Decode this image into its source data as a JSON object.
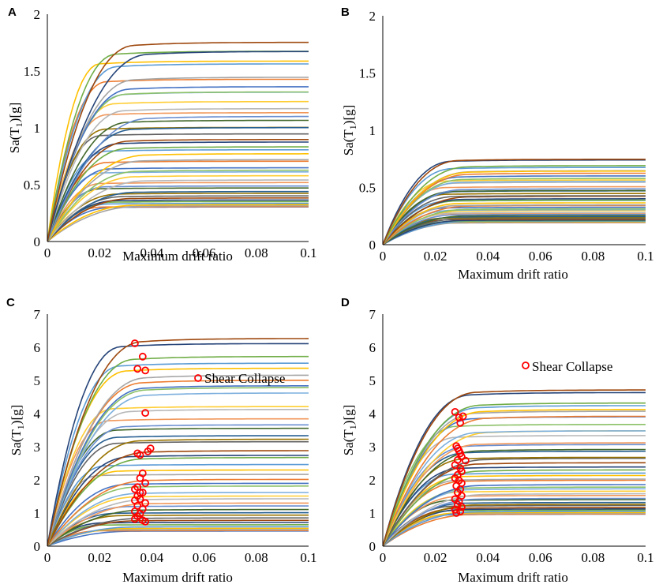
{
  "chart_data": [
    {
      "panel": "A",
      "type": "line",
      "xlabel": "Maximum drift ratio",
      "ylabel_main": "Sa(T",
      "ylabel_sub": "1",
      "ylabel_tail": ")[g]",
      "xlim": [
        0,
        0.1
      ],
      "ylim": [
        0,
        2
      ],
      "xticks": [
        0,
        0.02,
        0.04,
        0.06,
        0.08,
        0.1
      ],
      "xtick_labels": [
        "0",
        "0.02",
        "0.04",
        "0.06",
        "0.08",
        "0.1"
      ],
      "yticks": [
        0,
        0.5,
        1,
        1.5,
        2
      ],
      "ytick_labels": [
        "0",
        "0.5",
        "1",
        "1.5",
        "2"
      ],
      "curve_count": 44,
      "plateau_range": [
        0.3,
        1.78
      ],
      "yield_drift_range": [
        0.02,
        0.04
      ],
      "seed": 11,
      "legend": null
    },
    {
      "panel": "B",
      "type": "line",
      "xlabel": "Maximum drift ratio",
      "ylabel_main": "Sa(T",
      "ylabel_sub": "1",
      "ylabel_tail": ")[g]",
      "xlim": [
        0,
        0.1
      ],
      "ylim": [
        0,
        2
      ],
      "xticks": [
        0,
        0.02,
        0.04,
        0.06,
        0.08,
        0.1
      ],
      "xtick_labels": [
        "0",
        "0.02",
        "0.04",
        "0.06",
        "0.08",
        "0.1"
      ],
      "yticks": [
        0,
        0.5,
        1,
        1.5,
        2
      ],
      "ytick_labels": [
        "0",
        "0.5",
        "1",
        "1.5",
        "2"
      ],
      "curve_count": 44,
      "plateau_range": [
        0.19,
        0.75
      ],
      "yield_drift_range": [
        0.024,
        0.034
      ],
      "seed": 23,
      "legend": null
    },
    {
      "panel": "C",
      "type": "line",
      "xlabel": "Maximum drift ratio",
      "ylabel_main": "Sa(T",
      "ylabel_sub": "1",
      "ylabel_tail": ")[g]",
      "xlim": [
        0,
        0.1
      ],
      "ylim": [
        0,
        7
      ],
      "xticks": [
        0,
        0.02,
        0.04,
        0.06,
        0.08,
        0.1
      ],
      "xtick_labels": [
        "0",
        "0.02",
        "0.04",
        "0.06",
        "0.08",
        "0.1"
      ],
      "yticks": [
        0,
        1,
        2,
        3,
        4,
        5,
        6,
        7
      ],
      "ytick_labels": [
        "0",
        "1",
        "2",
        "3",
        "4",
        "5",
        "6",
        "7"
      ],
      "curve_count": 44,
      "plateau_range": [
        0.45,
        6.5
      ],
      "yield_drift_range": [
        0.02,
        0.04
      ],
      "seed": 37,
      "legend": "Shear Collapse",
      "shear_collapse_points": [
        {
          "x": 0.0335,
          "y": 6.12
        },
        {
          "x": 0.0365,
          "y": 5.72
        },
        {
          "x": 0.0345,
          "y": 5.35
        },
        {
          "x": 0.0375,
          "y": 5.3
        },
        {
          "x": 0.0375,
          "y": 4.02
        },
        {
          "x": 0.0345,
          "y": 2.8
        },
        {
          "x": 0.0355,
          "y": 2.75
        },
        {
          "x": 0.0385,
          "y": 2.86
        },
        {
          "x": 0.0395,
          "y": 2.95
        },
        {
          "x": 0.0365,
          "y": 2.2
        },
        {
          "x": 0.0355,
          "y": 2.05
        },
        {
          "x": 0.0375,
          "y": 1.9
        },
        {
          "x": 0.0345,
          "y": 1.78
        },
        {
          "x": 0.0335,
          "y": 1.72
        },
        {
          "x": 0.0365,
          "y": 1.62
        },
        {
          "x": 0.0345,
          "y": 1.52
        },
        {
          "x": 0.0355,
          "y": 1.42
        },
        {
          "x": 0.0335,
          "y": 1.38
        },
        {
          "x": 0.0375,
          "y": 1.3
        },
        {
          "x": 0.0345,
          "y": 1.22
        },
        {
          "x": 0.0365,
          "y": 1.12
        },
        {
          "x": 0.0335,
          "y": 1.05
        },
        {
          "x": 0.0355,
          "y": 0.98
        },
        {
          "x": 0.0345,
          "y": 0.9
        },
        {
          "x": 0.0365,
          "y": 0.78
        },
        {
          "x": 0.0375,
          "y": 0.74
        },
        {
          "x": 0.0335,
          "y": 0.82
        },
        {
          "x": 0.0355,
          "y": 1.62
        }
      ]
    },
    {
      "panel": "D",
      "type": "line",
      "xlabel": "Maximum drift ratio",
      "ylabel_main": "Sa(T",
      "ylabel_sub": "1",
      "ylabel_tail": ")[g]",
      "xlim": [
        0,
        0.1
      ],
      "ylim": [
        0,
        7
      ],
      "xticks": [
        0,
        0.02,
        0.04,
        0.06,
        0.08,
        0.1
      ],
      "xtick_labels": [
        "0",
        "0.02",
        "0.04",
        "0.06",
        "0.08",
        "0.1"
      ],
      "yticks": [
        0,
        1,
        2,
        3,
        4,
        5,
        6,
        7
      ],
      "ytick_labels": [
        "0",
        "1",
        "2",
        "3",
        "4",
        "5",
        "6",
        "7"
      ],
      "curve_count": 44,
      "plateau_range": [
        0.95,
        4.8
      ],
      "yield_drift_range": [
        0.026,
        0.042
      ],
      "seed": 53,
      "legend": "Shear Collapse",
      "shear_collapse_points": [
        {
          "x": 0.0275,
          "y": 4.05
        },
        {
          "x": 0.029,
          "y": 3.88
        },
        {
          "x": 0.0305,
          "y": 3.92
        },
        {
          "x": 0.0295,
          "y": 3.72
        },
        {
          "x": 0.028,
          "y": 3.02
        },
        {
          "x": 0.0285,
          "y": 2.95
        },
        {
          "x": 0.029,
          "y": 2.88
        },
        {
          "x": 0.0295,
          "y": 2.8
        },
        {
          "x": 0.03,
          "y": 2.7
        },
        {
          "x": 0.0315,
          "y": 2.58
        },
        {
          "x": 0.0285,
          "y": 2.6
        },
        {
          "x": 0.0275,
          "y": 2.45
        },
        {
          "x": 0.0295,
          "y": 2.35
        },
        {
          "x": 0.03,
          "y": 2.25
        },
        {
          "x": 0.0285,
          "y": 2.15
        },
        {
          "x": 0.0275,
          "y": 2.05
        },
        {
          "x": 0.029,
          "y": 1.98
        },
        {
          "x": 0.03,
          "y": 1.9
        },
        {
          "x": 0.028,
          "y": 1.82
        },
        {
          "x": 0.0295,
          "y": 1.72
        },
        {
          "x": 0.0285,
          "y": 1.62
        },
        {
          "x": 0.03,
          "y": 1.52
        },
        {
          "x": 0.0275,
          "y": 1.42
        },
        {
          "x": 0.029,
          "y": 1.35
        },
        {
          "x": 0.0285,
          "y": 1.25
        },
        {
          "x": 0.03,
          "y": 1.18
        },
        {
          "x": 0.0275,
          "y": 1.1
        },
        {
          "x": 0.0295,
          "y": 1.05
        },
        {
          "x": 0.028,
          "y": 1.0
        }
      ]
    }
  ],
  "palette": [
    "#4472c4",
    "#ed7d31",
    "#a5a5a5",
    "#ffc000",
    "#5b9bd5",
    "#70ad47",
    "#264478",
    "#9e480e",
    "#636363",
    "#997300",
    "#255e91",
    "#43682b",
    "#698ed0",
    "#f1975a",
    "#b7b7b7",
    "#ffcd33",
    "#7cafdd",
    "#8cc168"
  ],
  "marker_color": "#ff0000"
}
